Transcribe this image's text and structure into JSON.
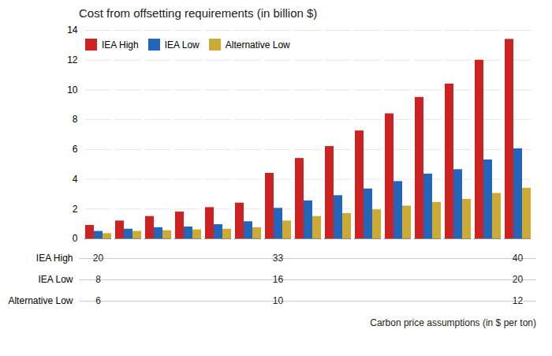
{
  "chart_data": {
    "type": "bar",
    "title": "Cost from offsetting requirements (in billion $)",
    "xlabel": "Carbon price assumptions (in $ per ton)",
    "categories": [
      null,
      null,
      null,
      null,
      null,
      null,
      null,
      null,
      null,
      null,
      null,
      null,
      null,
      null,
      null
    ],
    "series": [
      {
        "name": "IEA High",
        "color": "#cc2222",
        "values": [
          0.9,
          1.2,
          1.5,
          1.8,
          2.1,
          2.4,
          4.4,
          5.4,
          6.2,
          7.25,
          8.4,
          9.5,
          10.4,
          12.0,
          13.4
        ]
      },
      {
        "name": "IEA Low",
        "color": "#2266bb",
        "values": [
          0.5,
          0.65,
          0.75,
          0.8,
          0.95,
          1.15,
          2.05,
          2.55,
          2.9,
          3.35,
          3.85,
          4.35,
          4.65,
          5.3,
          6.05
        ]
      },
      {
        "name": "Alternative Low",
        "color": "#ccaa33",
        "values": [
          0.35,
          0.5,
          0.55,
          0.6,
          0.65,
          0.75,
          1.2,
          1.5,
          1.7,
          1.95,
          2.2,
          2.45,
          2.65,
          3.05,
          3.4
        ]
      }
    ],
    "ylim": [
      0,
      14
    ],
    "yticks": [
      0,
      2,
      4,
      6,
      8,
      10,
      12,
      14
    ],
    "grid": true,
    "legend": "upper left",
    "tick_labels": "y",
    "table": [
      {
        "label": "IEA High",
        "values": [
          20,
          null,
          null,
          null,
          null,
          null,
          33,
          null,
          null,
          null,
          null,
          null,
          null,
          null,
          40
        ]
      },
      {
        "label": "IEA Low",
        "values": [
          8,
          null,
          null,
          null,
          null,
          null,
          16,
          null,
          null,
          null,
          null,
          null,
          null,
          null,
          20
        ]
      },
      {
        "label": "Alternative Low",
        "values": [
          6,
          null,
          null,
          null,
          null,
          null,
          10,
          null,
          null,
          null,
          null,
          null,
          null,
          null,
          12
        ]
      }
    ]
  }
}
